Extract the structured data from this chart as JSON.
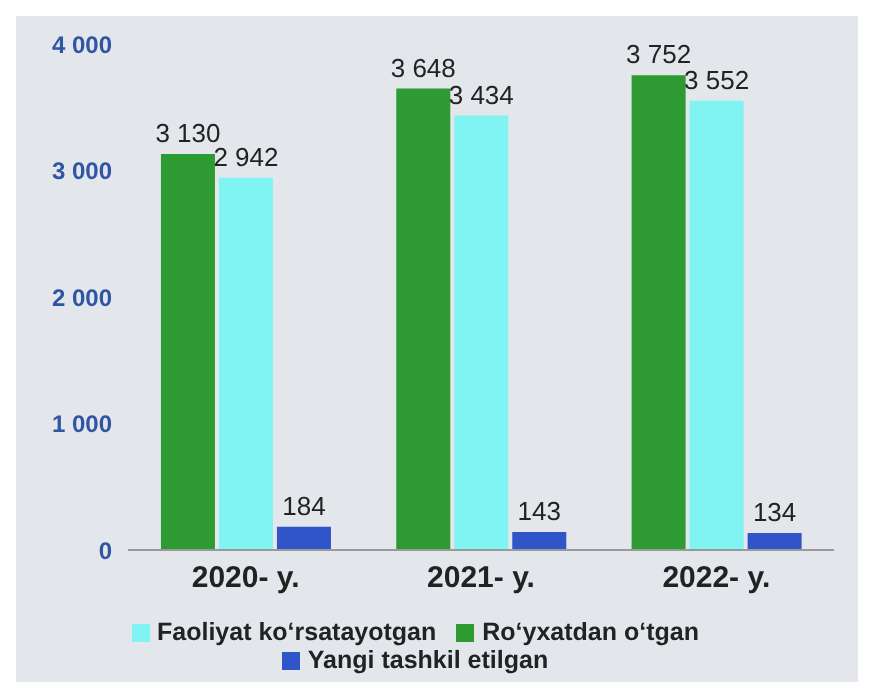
{
  "chart_data": {
    "type": "bar",
    "categories": [
      "2020- y.",
      "2021- y.",
      "2022- y."
    ],
    "series": [
      {
        "name": "Ro‘yxatdan o‘tgan",
        "color": "#2e9a32",
        "values": [
          3130,
          3648,
          3752
        ],
        "value_labels": [
          "3 130",
          "3 648",
          "3 752"
        ]
      },
      {
        "name": "Faoliyat ko‘rsatayotgan",
        "color": "#80f4f2",
        "values": [
          2942,
          3434,
          3552
        ],
        "value_labels": [
          "2 942",
          "3 434",
          "3 552"
        ]
      },
      {
        "name": "Yangi tashkil etilgan",
        "color": "#2f55c8",
        "values": [
          184,
          143,
          134
        ],
        "value_labels": [
          "184",
          "143",
          "134"
        ]
      }
    ],
    "ylim": [
      0,
      4000
    ],
    "yticks": [
      {
        "value": 0,
        "label": "0"
      },
      {
        "value": 1000,
        "label": "1 000"
      },
      {
        "value": 2000,
        "label": "2 000"
      },
      {
        "value": 3000,
        "label": "3 000"
      },
      {
        "value": 4000,
        "label": "4 000"
      }
    ],
    "legend": "bottom",
    "grid": false
  }
}
